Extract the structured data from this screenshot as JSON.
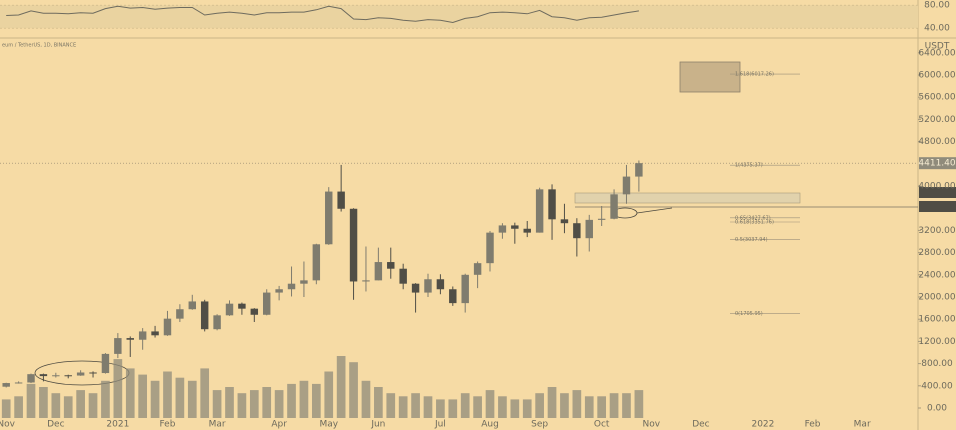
{
  "chart_data": {
    "type": "candlestick",
    "title": "eum / TetherUS, 1D, BINANCE",
    "currency": "USDT",
    "categories": [
      "Nov",
      null,
      null,
      null,
      "Dec",
      null,
      null,
      null,
      null,
      "2021",
      null,
      null,
      null,
      "Feb",
      null,
      null,
      null,
      "Mar",
      null,
      null,
      null,
      null,
      "Apr",
      null,
      null,
      null,
      "May",
      null,
      null,
      null,
      "Jun",
      null,
      null,
      null,
      null,
      "Jul",
      null,
      null,
      null,
      "Aug",
      null,
      null,
      null,
      "Sep",
      null,
      null,
      null,
      null,
      "Oct",
      null,
      null,
      null,
      "Nov",
      null,
      null,
      null,
      "Dec",
      null,
      null,
      null,
      null,
      "2022",
      null,
      null,
      null,
      "Feb",
      null,
      null,
      null,
      "Mar",
      null,
      null,
      null,
      null
    ],
    "open": [
      384,
      450,
      460,
      610,
      575,
      590,
      585,
      640,
      630,
      975,
      1260,
      1230,
      1380,
      1310,
      1610,
      1780,
      1920,
      1420,
      1670,
      1880,
      1790,
      1680,
      2080,
      2140,
      2240,
      2300,
      2950,
      3900,
      3590,
      2280,
      2300,
      2630,
      2510,
      2240,
      2080,
      2320,
      2140,
      1890,
      2400,
      2610,
      3160,
      3290,
      3230,
      3160,
      3940,
      3400,
      3330,
      3060,
      3390,
      3410,
      3850,
      4170,
      null,
      null,
      null,
      null,
      null,
      null,
      null,
      null,
      null,
      null,
      null,
      null,
      null,
      null,
      null,
      null,
      null,
      null,
      null,
      null,
      null,
      null
    ],
    "high": [
      455,
      480,
      620,
      620,
      635,
      600,
      680,
      660,
      990,
      1350,
      1290,
      1440,
      1480,
      1750,
      1870,
      2040,
      1950,
      1690,
      1940,
      1900,
      1800,
      2140,
      2200,
      2550,
      2640,
      2960,
      3980,
      4380,
      3600,
      2910,
      2890,
      2890,
      2600,
      2250,
      2420,
      2410,
      2190,
      2420,
      2640,
      3190,
      3330,
      3340,
      3370,
      3970,
      4030,
      3680,
      3420,
      3480,
      3640,
      3940,
      4380,
      4460,
      null,
      null,
      null,
      null,
      null,
      null,
      null,
      null,
      null,
      null,
      null,
      null,
      null,
      null,
      null,
      null,
      null,
      null,
      null,
      null,
      null,
      null
    ],
    "low": [
      370,
      440,
      450,
      480,
      550,
      535,
      580,
      550,
      620,
      900,
      920,
      1050,
      1270,
      1300,
      1550,
      1770,
      1380,
      1400,
      1660,
      1680,
      1550,
      1670,
      1940,
      2010,
      2000,
      2230,
      2940,
      3540,
      1950,
      2100,
      2300,
      2330,
      2140,
      1720,
      2000,
      2050,
      1840,
      1720,
      2160,
      2460,
      3050,
      2960,
      3080,
      3160,
      3030,
      3150,
      2730,
      2820,
      3280,
      3400,
      3680,
      3900,
      null,
      null,
      null,
      null,
      null,
      null,
      null,
      null,
      null,
      null,
      null,
      null,
      null,
      null,
      null,
      null,
      null,
      null,
      null,
      null,
      null,
      null
    ],
    "close": [
      450,
      460,
      610,
      575,
      590,
      585,
      640,
      630,
      975,
      1260,
      1230,
      1380,
      1310,
      1610,
      1780,
      1920,
      1420,
      1670,
      1880,
      1790,
      1680,
      2080,
      2140,
      2240,
      2300,
      2950,
      3900,
      3590,
      2280,
      2300,
      2630,
      2510,
      2240,
      2080,
      2320,
      2140,
      1890,
      2400,
      2610,
      3160,
      3290,
      3230,
      3160,
      3940,
      3400,
      3330,
      3060,
      3390,
      3410,
      3850,
      4170,
      4411.4,
      null,
      null,
      null,
      null,
      null,
      null,
      null,
      null,
      null,
      null,
      null,
      null,
      null,
      null,
      null,
      null,
      null,
      null,
      null,
      null,
      null,
      null
    ],
    "last_price_label": "4411.40",
    "up_color": "#7f7c6e",
    "down_color": "#504e46",
    "volume": {
      "color": "#8f8b7b",
      "values": [
        30,
        35,
        55,
        50,
        40,
        35,
        45,
        40,
        60,
        95,
        80,
        70,
        60,
        75,
        65,
        60,
        80,
        45,
        50,
        40,
        45,
        50,
        45,
        55,
        60,
        55,
        75,
        100,
        90,
        60,
        50,
        40,
        35,
        40,
        35,
        30,
        30,
        40,
        35,
        45,
        35,
        30,
        30,
        40,
        50,
        40,
        45,
        35,
        35,
        40,
        40,
        45,
        null,
        null,
        null,
        null,
        null,
        null,
        null,
        null,
        null,
        null,
        null,
        null,
        null,
        null,
        null,
        null,
        null,
        null,
        null,
        null,
        null,
        null
      ]
    },
    "ylim": [
      -216,
      6667
    ],
    "yticks": [
      {
        "value": 0,
        "label": "0.00"
      },
      {
        "value": 400,
        "label": "400.00"
      },
      {
        "value": 800,
        "label": "800.00"
      },
      {
        "value": 1200,
        "label": "1200.00"
      },
      {
        "value": 1600,
        "label": "1600.00"
      },
      {
        "value": 2000,
        "label": "2000.00"
      },
      {
        "value": 2400,
        "label": "2400.00"
      },
      {
        "value": 2800,
        "label": "2800.00"
      },
      {
        "value": 3200,
        "label": "3200.00"
      },
      {
        "value": 4000,
        "label": "4000.00"
      },
      {
        "value": 4800,
        "label": "4800.00"
      },
      {
        "value": 5200,
        "label": "5200.00"
      },
      {
        "value": 5600,
        "label": "5600.00"
      },
      {
        "value": 6000,
        "label": "6000.00"
      },
      {
        "value": 6400,
        "label": "6400.00"
      }
    ],
    "annotations": [
      {
        "label": "1.618(6017.26)",
        "value": 6017.26
      },
      {
        "label": "1(4375.37)",
        "value": 4375.37
      },
      {
        "label": "0.65(3427.67)",
        "value": 3427.67
      },
      {
        "label": "0.618(3351.76)",
        "value": 3351.76
      },
      {
        "label": "0.5(3037.94)",
        "value": 3037.94
      },
      {
        "label": "0(1705.95)",
        "value": 1705.95
      }
    ],
    "rsi": {
      "color": "#6e6b5e",
      "values": [
        62,
        63,
        70,
        66,
        66,
        65,
        67,
        66,
        74,
        78,
        75,
        76,
        73,
        75,
        76,
        76,
        63,
        66,
        68,
        66,
        63,
        67,
        67,
        68,
        68,
        72,
        78,
        74,
        56,
        55,
        58,
        57,
        54,
        52,
        55,
        54,
        50,
        57,
        60,
        67,
        68,
        67,
        65,
        71,
        60,
        58,
        54,
        58,
        59,
        63,
        67,
        70,
        null,
        null,
        null,
        null,
        null,
        null,
        null,
        null,
        null,
        null,
        null,
        null,
        null,
        null,
        null,
        null,
        null,
        null,
        null,
        null,
        null,
        null
      ],
      "ylim": [
        23,
        89
      ],
      "yticks": [
        {
          "value": 80,
          "label": "80.00"
        },
        {
          "value": 40,
          "label": "40.00"
        }
      ]
    },
    "grid": false
  }
}
